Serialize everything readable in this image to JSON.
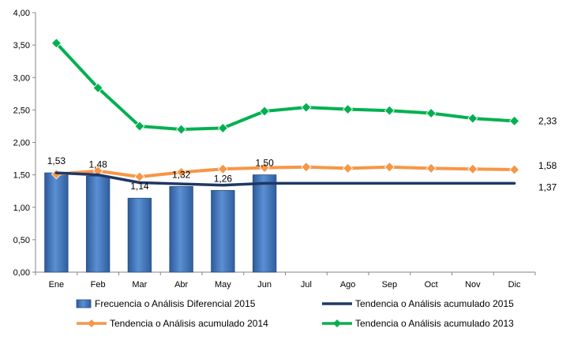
{
  "chart_data": {
    "type": "bar",
    "categories": [
      "Ene",
      "Feb",
      "Mar",
      "Abr",
      "May",
      "Jun",
      "Jul",
      "Ago",
      "Sep",
      "Oct",
      "Nov",
      "Dic"
    ],
    "ylim": [
      0,
      4.0
    ],
    "yticks": [
      "0,00",
      "0,50",
      "1,00",
      "1,50",
      "2,00",
      "2,50",
      "3,00",
      "3,50",
      "4,00"
    ],
    "grid": false,
    "legend_position": "bottom",
    "bars": {
      "name": "Frecuencia o Análisis Diferencial 2015",
      "color": "#4f81bd",
      "values": [
        1.53,
        1.48,
        1.14,
        1.32,
        1.26,
        1.5
      ],
      "labels": [
        "1,53",
        "1,48",
        "1,14",
        "1,32",
        "1,26",
        "1,50"
      ]
    },
    "lines": [
      {
        "name": "Tendencia o Análisis acumulado 2015",
        "color": "#1f3864",
        "marker": "none",
        "values": [
          1.53,
          1.5,
          1.38,
          1.36,
          1.34,
          1.37,
          1.37,
          1.37,
          1.37,
          1.37,
          1.37,
          1.37
        ],
        "end_label": "1,37"
      },
      {
        "name": "Tendencia o Análisis acumulado 2014",
        "color": "#f79646",
        "marker": "diamond",
        "values": [
          1.51,
          1.56,
          1.47,
          1.54,
          1.59,
          1.61,
          1.62,
          1.6,
          1.62,
          1.6,
          1.59,
          1.58
        ],
        "end_label": "1,58"
      },
      {
        "name": "Tendencia o Análisis acumulado 2013",
        "color": "#00b050",
        "marker": "diamond",
        "values": [
          3.53,
          2.84,
          2.25,
          2.2,
          2.22,
          2.48,
          2.54,
          2.51,
          2.49,
          2.45,
          2.37,
          2.33
        ],
        "end_label": "2,33"
      }
    ]
  }
}
